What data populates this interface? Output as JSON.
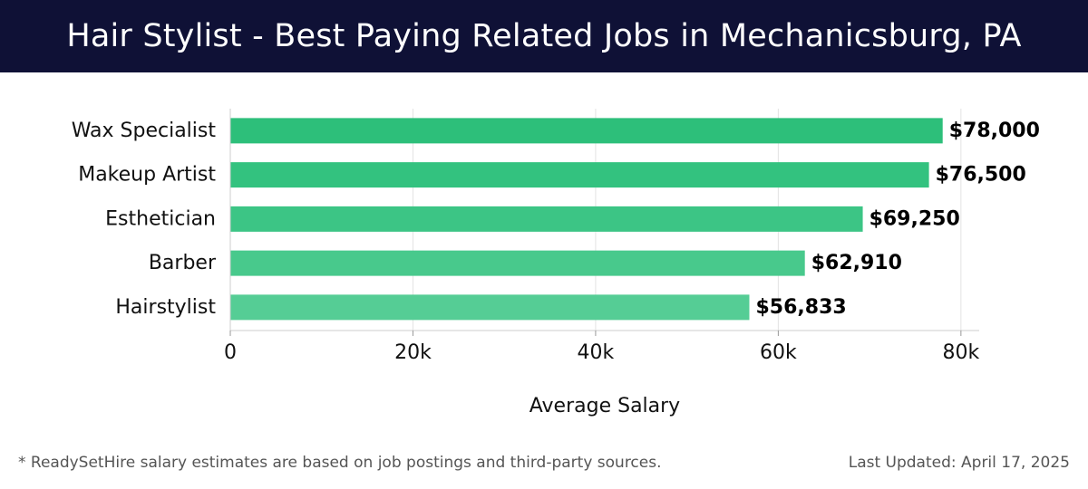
{
  "header": {
    "title": "Hair Stylist - Best Paying Related Jobs in Mechanicsburg, PA"
  },
  "chart_data": {
    "type": "bar",
    "orientation": "horizontal",
    "categories": [
      "Wax Specialist",
      "Makeup Artist",
      "Esthetician",
      "Barber",
      "Hairstylist"
    ],
    "values": [
      78000,
      76500,
      69250,
      62910,
      56833
    ],
    "value_labels": [
      "$78,000",
      "$76,500",
      "$69,250",
      "$62,910",
      "$56,833"
    ],
    "bar_colors": [
      "#2dbf7a",
      "#33c27f",
      "#3cc585",
      "#48c98c",
      "#55cd95"
    ],
    "xlabel": "Average Salary",
    "ylabel": "",
    "xlim": [
      0,
      82000
    ],
    "x_ticks": [
      0,
      20000,
      40000,
      60000,
      80000
    ],
    "x_tick_labels": [
      "0",
      "20k",
      "40k",
      "60k",
      "80k"
    ],
    "grid": true
  },
  "footer": {
    "note": "* ReadySetHire salary estimates are based on job postings and third-party sources.",
    "updated": "Last Updated: April 17, 2025"
  }
}
